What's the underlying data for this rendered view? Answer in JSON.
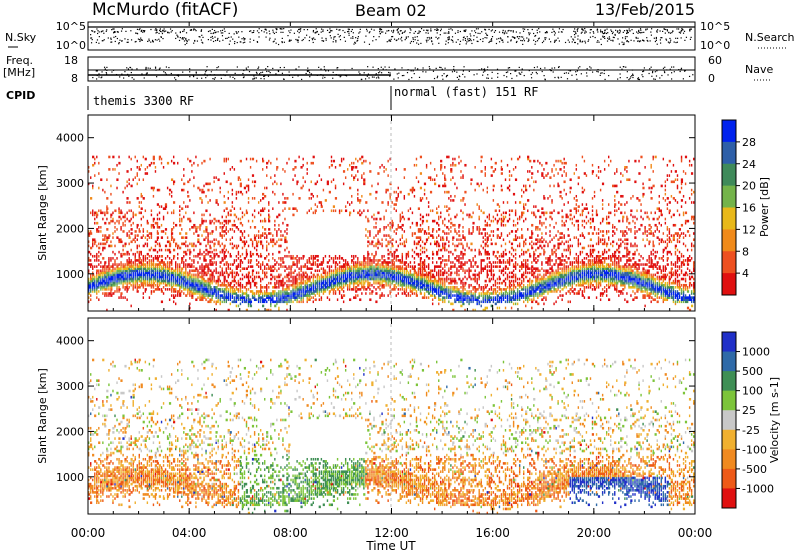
{
  "header": {
    "station": "McMurdo (fitACF)",
    "beam": "Beam 02",
    "date": "13/Feb/2015"
  },
  "status_panels": {
    "nsky_label": "N.Sky",
    "nsky_ticks": [
      "10^5",
      "10^0"
    ],
    "nsearch_label": "N.Search",
    "nsearch_ticks": [
      "10^5",
      "10^0"
    ],
    "freq_label_1": "Freq.",
    "freq_label_2": "[MHz]",
    "freq_ticks": [
      "18",
      "8"
    ],
    "nave_label": "Nave",
    "nave_ticks": [
      "60",
      "0"
    ],
    "cpid_label": "CPID",
    "cpid_segments": [
      "themis 3300 RF",
      "normal (fast) 151 RF"
    ],
    "cpid_change_time": "12:00"
  },
  "chart_data": [
    {
      "type": "heatmap",
      "title": "",
      "parameter": "Power",
      "colorbar_label": "Power [dB]",
      "colorbar_ticks": [
        "4",
        "8",
        "12",
        "16",
        "20",
        "24",
        "28"
      ],
      "colorbar_colors": [
        "#0022ee",
        "#2e5fa8",
        "#3f8a5a",
        "#74b34a",
        "#e8b81a",
        "#f08a1a",
        "#ee5020",
        "#e01010"
      ],
      "ylabel": "Slant Range [km]",
      "yticks": [
        1000,
        2000,
        3000,
        4000
      ],
      "ylim": [
        180,
        4500
      ],
      "xlim": [
        "00:00",
        "24:00"
      ]
    },
    {
      "type": "heatmap",
      "title": "",
      "parameter": "Velocity",
      "colorbar_label": "Velocity [m s-1]",
      "colorbar_ticks": [
        "1000",
        "500",
        "100",
        "25",
        "-25",
        "-100",
        "-500",
        "-1000"
      ],
      "colorbar_colors": [
        "#2030c8",
        "#2f6aa8",
        "#3f8f55",
        "#7cc43a",
        "#c8c8c8",
        "#f0b030",
        "#f08a20",
        "#ee5a18",
        "#e01010"
      ],
      "ylabel": "Slant Range [km]",
      "yticks": [
        1000,
        2000,
        3000,
        4000
      ],
      "ylim": [
        180,
        4500
      ],
      "xlim": [
        "00:00",
        "24:00"
      ]
    }
  ],
  "xaxis": {
    "label": "Time UT",
    "ticks": [
      "00:00",
      "04:00",
      "08:00",
      "12:00",
      "16:00",
      "20:00",
      "00:00"
    ]
  }
}
